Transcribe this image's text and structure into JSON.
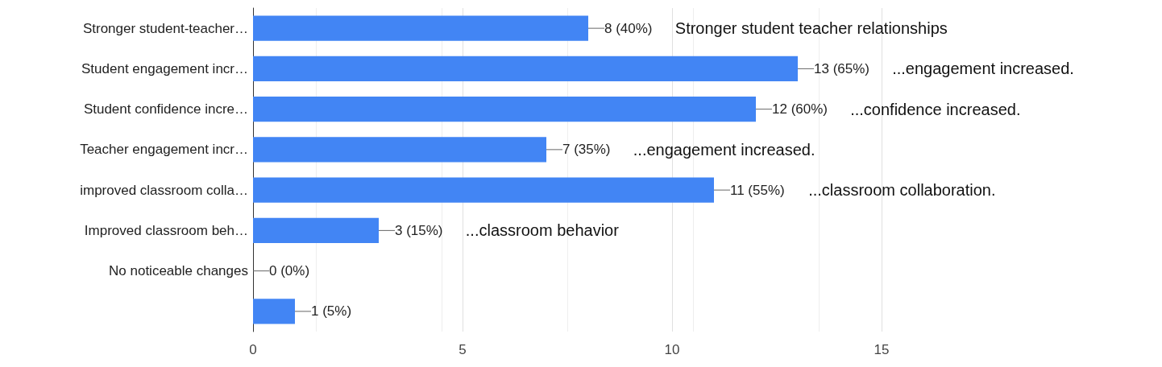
{
  "chart_data": {
    "type": "bar",
    "orientation": "horizontal",
    "categories": [
      "Stronger student-teacher…",
      "Student engagement incr…",
      "Student confidence incre…",
      "Teacher engagement incr…",
      "improved classroom colla…",
      "Improved classroom beh…",
      "No noticeable changes",
      null
    ],
    "values": [
      8,
      13,
      12,
      7,
      11,
      3,
      0,
      1
    ],
    "color": "#4285f4",
    "value_labels": [
      "8 (40%)",
      "13 (65%)",
      "12 (60%)",
      "7 (35%)",
      "11 (55%)",
      "3 (15%)",
      "0 (0%)",
      "1 (5%)"
    ],
    "xlim": [
      0,
      15
    ],
    "xticks": [
      0,
      5,
      10,
      15
    ],
    "grid": "x",
    "annotations": [
      "Stronger student teacher relationships",
      "...engagement increased.",
      "...confidence increased.",
      "...engagement increased.",
      "...classroom collaboration.",
      "...classroom behavior"
    ]
  }
}
